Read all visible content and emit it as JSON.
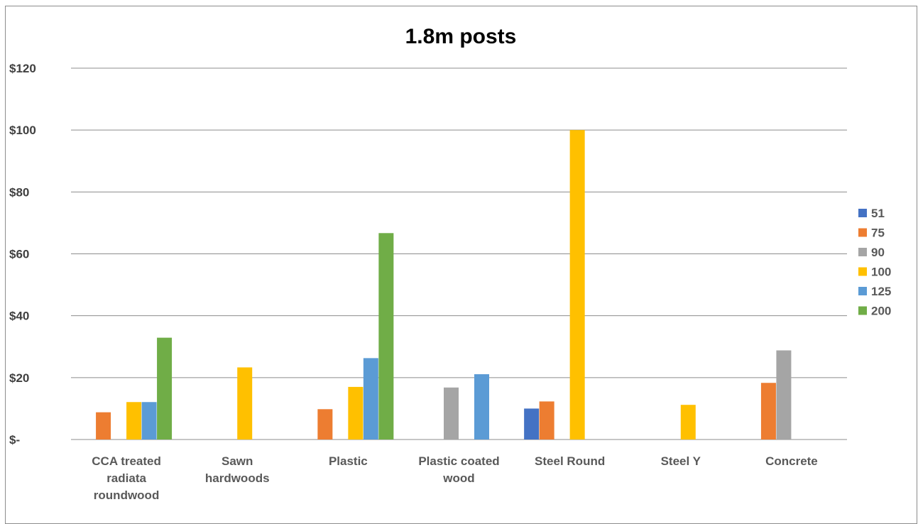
{
  "chart_data": {
    "type": "bar",
    "title": "1.8m posts",
    "xlabel": "",
    "ylabel": "",
    "ylim": [
      0,
      120
    ],
    "yticks": [
      0,
      20,
      40,
      60,
      80,
      100,
      120
    ],
    "ytick_labels": [
      "$-",
      "$20",
      "$40",
      "$60",
      "$80",
      "$100",
      "$120"
    ],
    "grid": true,
    "legend_position": "right",
    "categories": [
      [
        "CCA treated",
        "radiata",
        "roundwood"
      ],
      [
        "Sawn",
        "hardwoods"
      ],
      [
        "Plastic"
      ],
      [
        "Plastic coated",
        "wood"
      ],
      [
        "Steel Round"
      ],
      [
        "Steel Y"
      ],
      [
        "Concrete"
      ]
    ],
    "series": [
      {
        "name": "51",
        "color": "#4472C4",
        "values": [
          null,
          null,
          null,
          null,
          10,
          null,
          null
        ]
      },
      {
        "name": "75",
        "color": "#ED7D31",
        "values": [
          8.8,
          null,
          9.8,
          null,
          12.3,
          null,
          18.3
        ]
      },
      {
        "name": "90",
        "color": "#A5A5A5",
        "values": [
          null,
          null,
          null,
          16.8,
          null,
          null,
          28.8
        ]
      },
      {
        "name": "100",
        "color": "#FFC000",
        "values": [
          12.1,
          23.3,
          17,
          null,
          100,
          11.2,
          null
        ]
      },
      {
        "name": "125",
        "color": "#5B9BD5",
        "values": [
          12.1,
          null,
          26.3,
          21.1,
          null,
          null,
          null
        ]
      },
      {
        "name": "200",
        "color": "#70AD47",
        "values": [
          32.9,
          null,
          66.7,
          null,
          null,
          null,
          null
        ]
      }
    ]
  },
  "colors": {
    "grid": "#8c8c8c",
    "frame_border": "#8c8c8c",
    "background": "#ffffff"
  }
}
